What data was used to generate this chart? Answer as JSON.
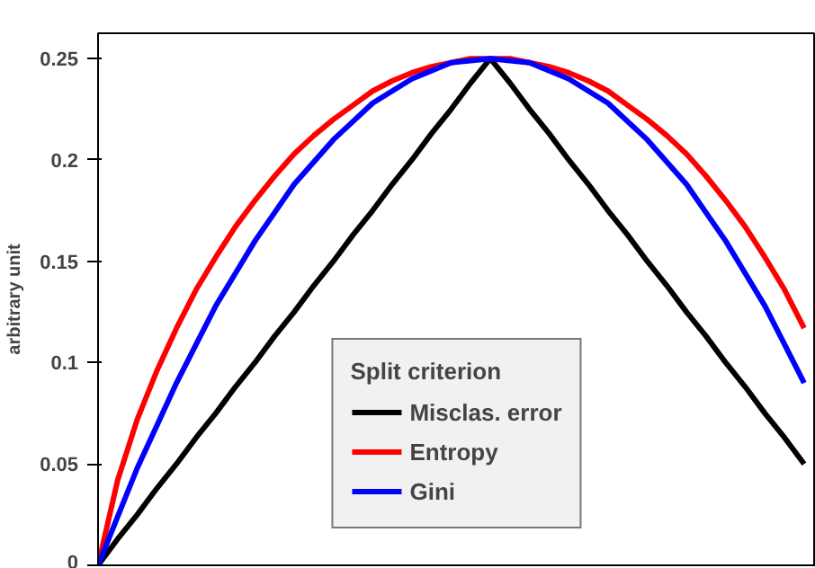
{
  "chart_data": {
    "type": "line",
    "ylabel": "arbitrary unit",
    "legend_title": "Split criterion",
    "categories": [
      null,
      null,
      null,
      null,
      null,
      null,
      null,
      null,
      null,
      null,
      null,
      null,
      null,
      null,
      null,
      null,
      null,
      null,
      null,
      null,
      null,
      null,
      null,
      null,
      null,
      null,
      null,
      null,
      null,
      null,
      null,
      null,
      null,
      null,
      null,
      null,
      null
    ],
    "series": [
      {
        "name": "Misclas. error",
        "color": "#000000",
        "values": [
          0,
          0.013,
          0.025,
          0.038,
          0.05,
          0.063,
          0.075,
          0.088,
          0.1,
          0.113,
          0.125,
          0.138,
          0.15,
          0.163,
          0.175,
          0.188,
          0.2,
          0.213,
          0.225,
          0.238,
          0.25,
          0.238,
          0.225,
          0.213,
          0.2,
          0.188,
          0.175,
          0.163,
          0.15,
          0.138,
          0.125,
          0.113,
          0.1,
          0.088,
          0.075,
          0.063,
          0.05
        ]
      },
      {
        "name": "Entropy",
        "color": "#ff0000",
        "values": [
          0,
          0.042,
          0.072,
          0.096,
          0.117,
          0.136,
          0.152,
          0.167,
          0.18,
          0.192,
          0.203,
          0.212,
          0.22,
          0.227,
          0.234,
          0.239,
          0.243,
          0.246,
          0.248,
          0.25,
          0.25,
          0.25,
          0.248,
          0.246,
          0.243,
          0.239,
          0.234,
          0.227,
          0.22,
          0.212,
          0.203,
          0.192,
          0.18,
          0.167,
          0.152,
          0.136,
          0.117
        ]
      },
      {
        "name": "Gini",
        "color": "#0000ff",
        "values": [
          0,
          0.024,
          0.048,
          0.069,
          0.09,
          0.109,
          0.128,
          0.144,
          0.16,
          0.174,
          0.188,
          0.199,
          0.21,
          0.219,
          0.228,
          0.234,
          0.24,
          0.244,
          0.248,
          0.249,
          0.25,
          0.249,
          0.248,
          0.244,
          0.24,
          0.234,
          0.228,
          0.219,
          0.21,
          0.199,
          0.188,
          0.174,
          0.16,
          0.144,
          0.128,
          0.109,
          0.09
        ]
      }
    ],
    "ylim": [
      0,
      0.2625
    ],
    "yticks": [
      0,
      0.05,
      0.1,
      0.15,
      0.2,
      0.25
    ],
    "grid": false,
    "legend": "bottom",
    "tick_labels": "y",
    "marker": "none",
    "line_style": "solid"
  }
}
